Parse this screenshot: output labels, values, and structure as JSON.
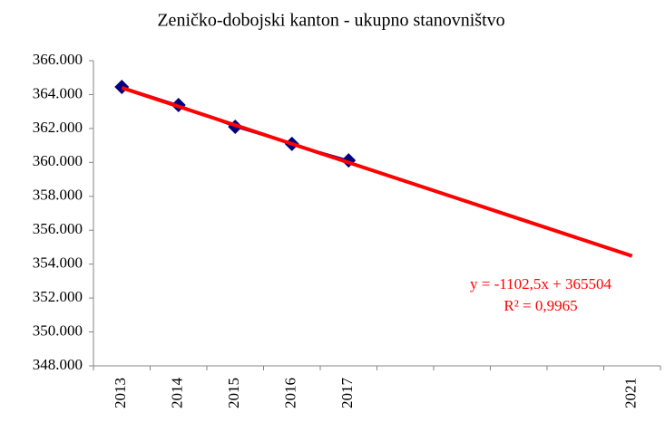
{
  "chart_data": {
    "type": "line",
    "title": "Zeničko-dobojski  kanton - ukupno stanovništvo",
    "categories": [
      "2013",
      "2014",
      "2015",
      "2016",
      "2017",
      null,
      null,
      null,
      null,
      "2021"
    ],
    "series": [
      {
        "name": "ukupno stanovništvo",
        "color": "#000080",
        "values": [
          364450,
          363380,
          362100,
          361090,
          360120,
          null,
          null,
          null,
          null,
          null
        ]
      },
      {
        "name": "trend",
        "color": "#ff0000",
        "values": [
          364401.5,
          363299,
          362196.5,
          361094,
          359991.5,
          358889,
          357786.5,
          356684,
          355581.5,
          354479
        ]
      }
    ],
    "annotations": [
      "y = -1102,5x + 365504",
      "R² = 0,9965"
    ],
    "ylim": [
      348000,
      366000
    ],
    "yticks": [
      {
        "value": 348000,
        "label": "348.000"
      },
      {
        "value": 350000,
        "label": "350.000"
      },
      {
        "value": 352000,
        "label": "352.000"
      },
      {
        "value": 354000,
        "label": "354.000"
      },
      {
        "value": 356000,
        "label": "356.000"
      },
      {
        "value": 358000,
        "label": "358.000"
      },
      {
        "value": 360000,
        "label": "360.000"
      },
      {
        "value": 362000,
        "label": "362.000"
      },
      {
        "value": 364000,
        "label": "364.000"
      },
      {
        "value": 366000,
        "label": "366.000"
      }
    ]
  }
}
